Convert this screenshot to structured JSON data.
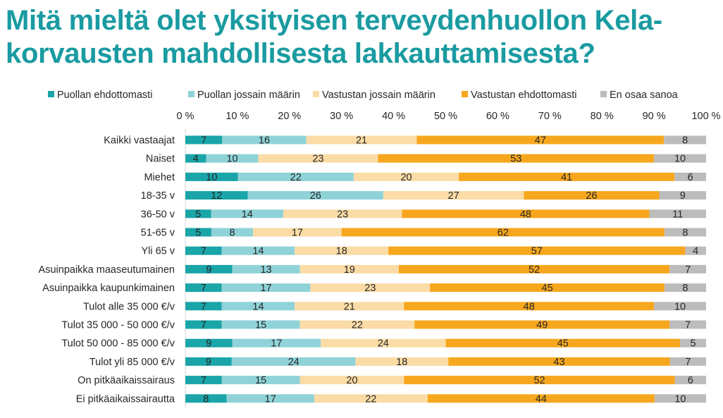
{
  "title": "Mitä mieltä olet yksityisen terveydenhuollon Kela-korvausten mahdollisesta lakkauttamisesta?",
  "colors": {
    "title": "#1a9ba1",
    "text": "#262626",
    "series": [
      "#1aa5a9",
      "#8fd3d8",
      "#fbdca6",
      "#f7a71e",
      "#bcbcbc"
    ]
  },
  "chart_data": {
    "type": "bar",
    "orientation": "horizontal",
    "stacked": true,
    "xlim": [
      0,
      100
    ],
    "x_ticks": [
      "0 %",
      "10 %",
      "20 %",
      "30 %",
      "40 %",
      "50 %",
      "60 %",
      "70 %",
      "80 %",
      "90 %",
      "100 %"
    ],
    "grid": false,
    "legend_position": "top",
    "categories": [
      "Kaikki vastaajat",
      "Naiset",
      "Miehet",
      "18-35 v",
      "36-50 v",
      "51-65 v",
      "Yli 65 v",
      "Asuinpaikka maaseutumainen",
      "Asuinpaikka kaupunkimainen",
      "Tulot alle 35 000 €/v",
      "Tulot 35 000 - 50 000 €/v",
      "Tulot 50 000 - 85 000 €/v",
      "Tulot yli 85 000 €/v",
      "On pitkäaikaissairaus",
      "Ei pitkäaikaissairautta"
    ],
    "series": [
      {
        "name": "Puollan ehdottomasti",
        "values": [
          7,
          4,
          10,
          12,
          5,
          5,
          7,
          9,
          7,
          7,
          7,
          9,
          9,
          7,
          8
        ]
      },
      {
        "name": "Puollan jossain määrin",
        "values": [
          16,
          10,
          22,
          26,
          14,
          8,
          14,
          13,
          17,
          14,
          15,
          17,
          24,
          15,
          17
        ]
      },
      {
        "name": "Vastustan jossain määrin",
        "values": [
          21,
          23,
          20,
          27,
          23,
          17,
          18,
          19,
          23,
          21,
          22,
          24,
          18,
          20,
          22
        ]
      },
      {
        "name": "Vastustan ehdottomasti",
        "values": [
          47,
          53,
          41,
          26,
          48,
          62,
          57,
          52,
          45,
          48,
          49,
          45,
          43,
          52,
          44
        ]
      },
      {
        "name": "En osaa sanoa",
        "values": [
          8,
          10,
          6,
          9,
          11,
          8,
          4,
          7,
          8,
          10,
          7,
          5,
          7,
          6,
          10
        ]
      }
    ]
  }
}
